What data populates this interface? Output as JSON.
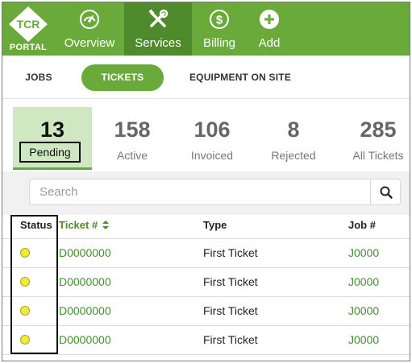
{
  "brand": {
    "logo_text": "TCR",
    "portal_label": "PORTAL",
    "accent": "#6aaa3a",
    "accent_dark": "#4f8a2c"
  },
  "nav": {
    "items": [
      {
        "label": "Overview",
        "icon": "gauge-icon",
        "active": false
      },
      {
        "label": "Services",
        "icon": "tools-icon",
        "active": true
      },
      {
        "label": "Billing",
        "icon": "dollar-icon",
        "active": false
      },
      {
        "label": "Add",
        "icon": "plus-icon",
        "active": false
      }
    ]
  },
  "subtabs": [
    {
      "label": "JOBS",
      "active": false
    },
    {
      "label": "TICKETS",
      "active": true
    },
    {
      "label": "EQUIPMENT ON SITE",
      "active": false
    }
  ],
  "stats": [
    {
      "value": "13",
      "label": "Pending",
      "active": true
    },
    {
      "value": "158",
      "label": "Active",
      "active": false
    },
    {
      "value": "106",
      "label": "Invoiced",
      "active": false
    },
    {
      "value": "8",
      "label": "Rejected",
      "active": false
    },
    {
      "value": "285",
      "label": "All Tickets",
      "active": false
    }
  ],
  "search": {
    "placeholder": "Search",
    "icon": "search-icon"
  },
  "table": {
    "columns": [
      "Status",
      "Ticket #",
      "Type",
      "Job #"
    ],
    "sort_icon": "sort-icon",
    "rows": [
      {
        "status": "pending",
        "status_color": "#f2ec2e",
        "ticket": "D0000000",
        "type": "First Ticket",
        "job": "J0000"
      },
      {
        "status": "pending",
        "status_color": "#f2ec2e",
        "ticket": "D0000000",
        "type": "First Ticket",
        "job": "J0000"
      },
      {
        "status": "pending",
        "status_color": "#f2ec2e",
        "ticket": "D0000000",
        "type": "First Ticket",
        "job": "J0000"
      },
      {
        "status": "pending",
        "status_color": "#f2ec2e",
        "ticket": "D0000000",
        "type": "First Ticket",
        "job": "J0000"
      }
    ]
  }
}
